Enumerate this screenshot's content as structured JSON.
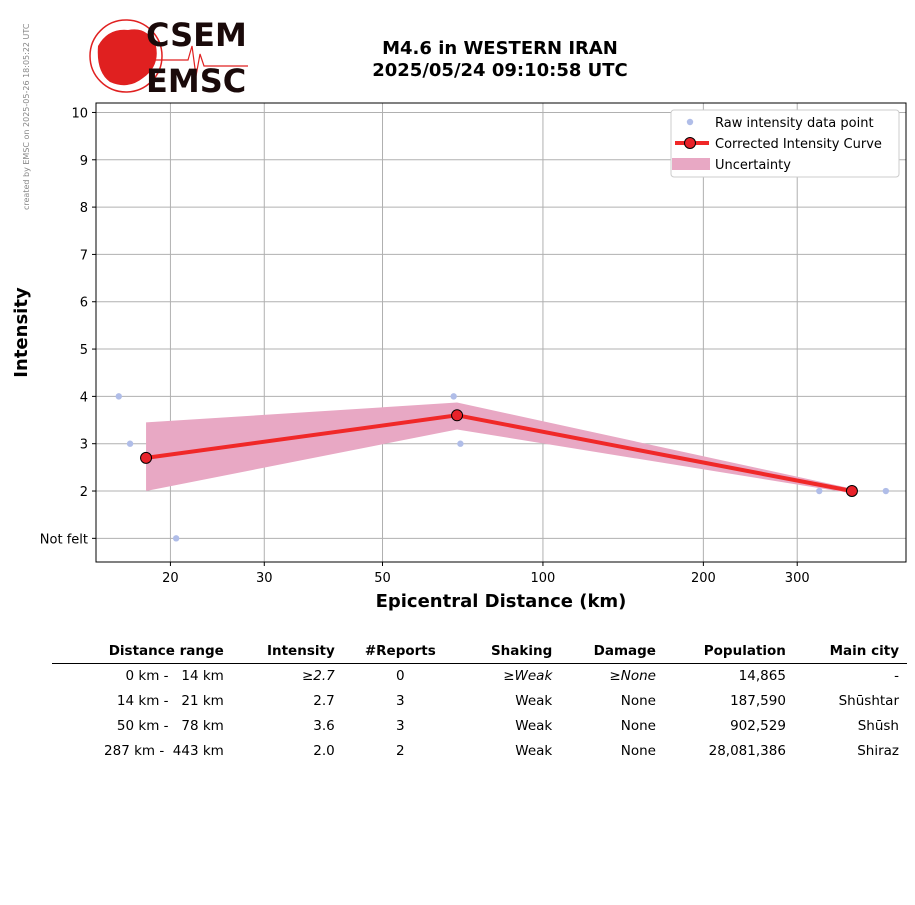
{
  "credit": "created by EMSC on 2025-05-26 18:05:22 UTC",
  "logo": {
    "top": "CSEM",
    "bottom": "EMSC",
    "color": "#e02020"
  },
  "title": {
    "line1": "M4.6 in WESTERN IRAN",
    "line2": "2025/05/24 09:10:58 UTC"
  },
  "chart_data": {
    "type": "line",
    "xlabel": "Epicentral Distance (km)",
    "ylabel": "Intensity",
    "x_scale": "log",
    "xlim": [
      14.5,
      480
    ],
    "ylim": [
      0.5,
      10.2
    ],
    "x_ticks": [
      20,
      30,
      50,
      100,
      200,
      300
    ],
    "y_ticks": [
      1,
      2,
      3,
      4,
      5,
      6,
      7,
      8,
      9,
      10
    ],
    "y_tick_labels": [
      "Not felt",
      "2",
      "3",
      "4",
      "5",
      "6",
      "7",
      "8",
      "9",
      "10"
    ],
    "grid": true,
    "legend_position": "top-right",
    "legend": {
      "raw": "Raw intensity data point",
      "curve": "Corrected Intensity Curve",
      "uncertainty": "Uncertainty"
    },
    "raw_points": [
      {
        "x": 16,
        "y": 4
      },
      {
        "x": 16.8,
        "y": 3
      },
      {
        "x": 20.5,
        "y": 1
      },
      {
        "x": 68,
        "y": 4
      },
      {
        "x": 70,
        "y": 3
      },
      {
        "x": 330,
        "y": 2
      },
      {
        "x": 440,
        "y": 2
      }
    ],
    "curve": [
      {
        "x": 18,
        "y": 2.7
      },
      {
        "x": 69,
        "y": 3.6
      },
      {
        "x": 380,
        "y": 2.0
      }
    ],
    "uncertainty": {
      "x": [
        18,
        69,
        380
      ],
      "upper": [
        3.45,
        3.87,
        2.05
      ],
      "lower": [
        2.0,
        3.3,
        1.95
      ]
    },
    "colors": {
      "raw": "#b0bde8",
      "curve": "#f02828",
      "marker": "#e8222a",
      "band": "#e8a8c4",
      "grid": "#b0b0b0"
    }
  },
  "table": {
    "headers": [
      "Distance range",
      "Intensity",
      "#Reports",
      "Shaking",
      "Damage",
      "Population",
      "Main city"
    ],
    "rows": [
      {
        "range": "0 km -   14 km",
        "intensity": "≥2.7",
        "reports": "0",
        "shaking": "≥Weak",
        "damage": "≥None",
        "population": "14,865",
        "city": "-",
        "italic": true
      },
      {
        "range": "14 km -   21 km",
        "intensity": "2.7",
        "reports": "3",
        "shaking": "Weak",
        "damage": "None",
        "population": "187,590",
        "city": "Shūshtar",
        "italic": false
      },
      {
        "range": "50 km -   78 km",
        "intensity": "3.6",
        "reports": "3",
        "shaking": "Weak",
        "damage": "None",
        "population": "902,529",
        "city": "Shūsh",
        "italic": false
      },
      {
        "range": "287 km -  443 km",
        "intensity": "2.0",
        "reports": "2",
        "shaking": "Weak",
        "damage": "None",
        "population": "28,081,386",
        "city": "Shiraz",
        "italic": false
      }
    ]
  }
}
